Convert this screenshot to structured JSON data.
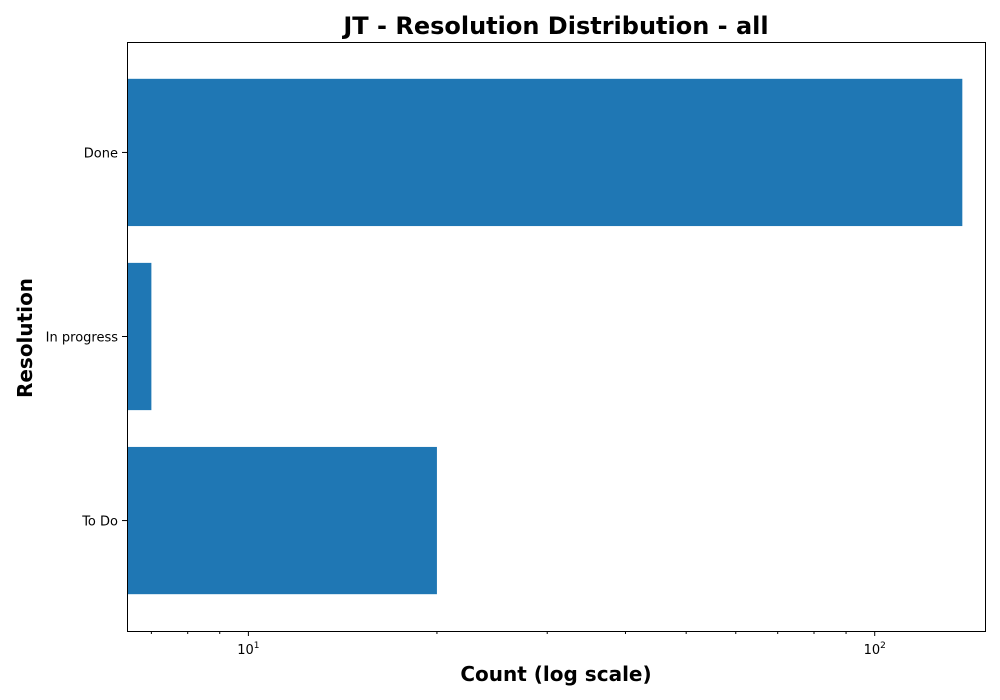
{
  "chart_data": {
    "type": "bar",
    "orientation": "horizontal",
    "title": "JT - Resolution Distribution - all",
    "xlabel": "Count (log scale)",
    "ylabel": "Resolution",
    "x_scale": "log",
    "xlim": [
      6.4,
      150
    ],
    "x_major_ticks": [
      {
        "value": 10,
        "base": "10",
        "exp": "1"
      },
      {
        "value": 100,
        "base": "10",
        "exp": "2"
      }
    ],
    "categories": [
      "Done",
      "In progress",
      "To Do"
    ],
    "values": [
      138,
      7,
      20
    ],
    "bar_color": "#1f77b4",
    "grid": false,
    "legend": "none"
  }
}
